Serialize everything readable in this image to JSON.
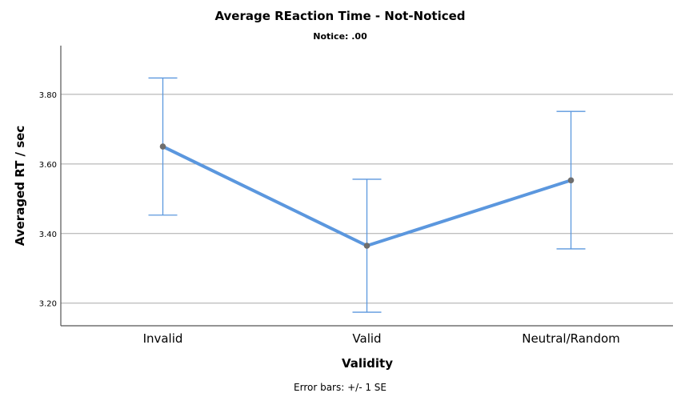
{
  "chart_data": {
    "type": "line",
    "title": "Average REaction Time - Not-Noticed",
    "subtitle": "Notice: .00",
    "xlabel": "Validity",
    "ylabel": "Averaged RT / sec",
    "footnote": "Error bars: +/- 1 SE",
    "categories": [
      "Invalid",
      "Valid",
      "Neutral/Random"
    ],
    "series": [
      {
        "values": [
          3.65,
          3.365,
          3.553
        ],
        "error_low": [
          3.453,
          3.174,
          3.356
        ],
        "error_high": [
          3.847,
          3.556,
          3.751
        ]
      }
    ],
    "ylim": [
      3.135,
      3.94
    ],
    "yticks": [
      3.2,
      3.4,
      3.6,
      3.8
    ],
    "ytick_labels": [
      "3.20",
      "3.40",
      "3.60",
      "3.80"
    ],
    "grid": true,
    "colors": {
      "line": "#5b97de",
      "errorbar": "#5b97de",
      "marker": "#6e6e6e",
      "grid": "#a8a8a8"
    }
  }
}
